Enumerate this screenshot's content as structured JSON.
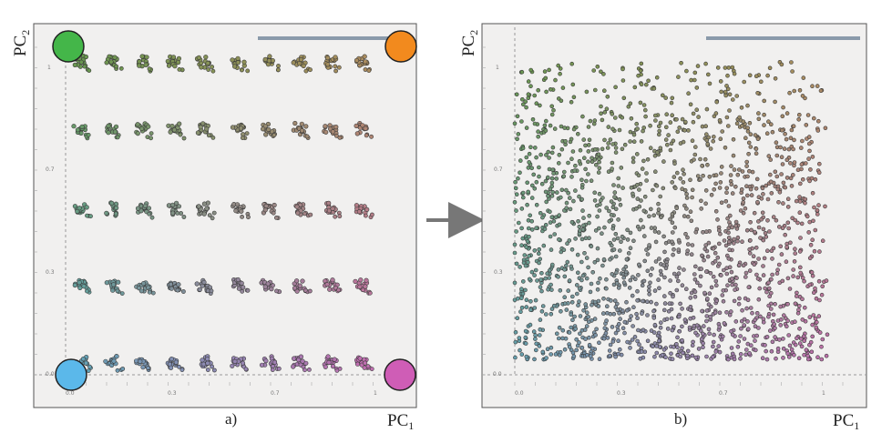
{
  "chart_data": [
    {
      "panel": "a)",
      "type": "scatter",
      "xlabel": "PC",
      "xlabel_sub": "1",
      "ylabel": "PC",
      "ylabel_sub": "2",
      "x_ticks": [
        "0.0",
        "0.3",
        "0.7",
        "1"
      ],
      "y_ticks": [
        "0.0",
        "0.3",
        "0.7",
        "1"
      ],
      "xlim": [
        0,
        1.1
      ],
      "ylim": [
        0,
        1.1
      ],
      "grid": false,
      "layout": "5 rows x 10 columns of small point clusters forming a color gradient",
      "cluster_columns_x": [
        0.05,
        0.15,
        0.25,
        0.35,
        0.45,
        0.56,
        0.66,
        0.76,
        0.86,
        0.96
      ],
      "cluster_rows_y": [
        0.04,
        0.29,
        0.54,
        0.8,
        1.02
      ],
      "corner_markers": [
        {
          "corner": "top-left",
          "color": "#44b649"
        },
        {
          "corner": "top-right",
          "color": "#f28a1e"
        },
        {
          "corner": "bottom-left",
          "color": "#5bb8ea"
        },
        {
          "corner": "bottom-right",
          "color": "#cf5db6"
        }
      ]
    },
    {
      "panel": "b)",
      "type": "scatter",
      "xlabel": "PC",
      "xlabel_sub": "1",
      "ylabel": "PC",
      "ylabel_sub": "2",
      "x_ticks": [
        "0.0",
        "0.3",
        "0.7",
        "1"
      ],
      "y_ticks": [
        "0.0",
        "0.3",
        "0.7",
        "1"
      ],
      "xlim": [
        0,
        1.1
      ],
      "ylim": [
        0,
        1.1
      ],
      "grid": false,
      "n_points_approx": 2000,
      "distribution": "dense cloud spanning x 0.0–1.0, y 0.05–1.02, same color gradient"
    }
  ],
  "arrow_color": "#777777",
  "panel_bg": "#f1f0ef",
  "bar_color": "#8a9aaa"
}
